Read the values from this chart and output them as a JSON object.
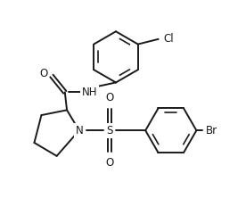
{
  "bg_color": "#ffffff",
  "line_color": "#1a1a1a",
  "line_width": 1.4,
  "font_size": 8.5,
  "figsize": [
    2.76,
    2.41
  ],
  "dpi": 100,
  "xlim": [
    -0.85,
    1.55
  ],
  "ylim": [
    -0.8,
    1.05
  ]
}
